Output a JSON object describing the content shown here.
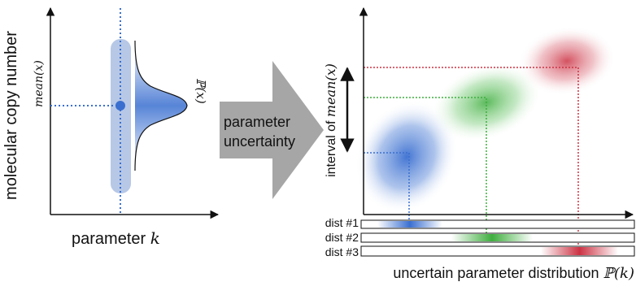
{
  "left_panel": {
    "y_axis_label": "molecular copy number",
    "mean_tick_label": "mean(x)",
    "distribution_label": "ℙ(x)",
    "x_axis_label_text": "parameter ",
    "x_axis_label_var": "k"
  },
  "arrow": {
    "line1": "parameter",
    "line2": "uncertainty"
  },
  "right_panel": {
    "interval_label_text": "interval of ",
    "interval_label_var": "mean(x)",
    "distributions": [
      {
        "label": "dist #1",
        "color": "#3a6fd0"
      },
      {
        "label": "dist #2",
        "color": "#3fae3f"
      },
      {
        "label": "dist #3",
        "color": "#cc3344"
      }
    ],
    "x_axis_label_text": "uncertain parameter distribution ",
    "x_axis_label_var": "ℙ(k)"
  },
  "colors": {
    "blue": "#3a6fd0",
    "light_blue": "#b7c8e6",
    "green": "#3fae3f",
    "red": "#cc3344",
    "arrow_gray": "#a6a6a6"
  }
}
